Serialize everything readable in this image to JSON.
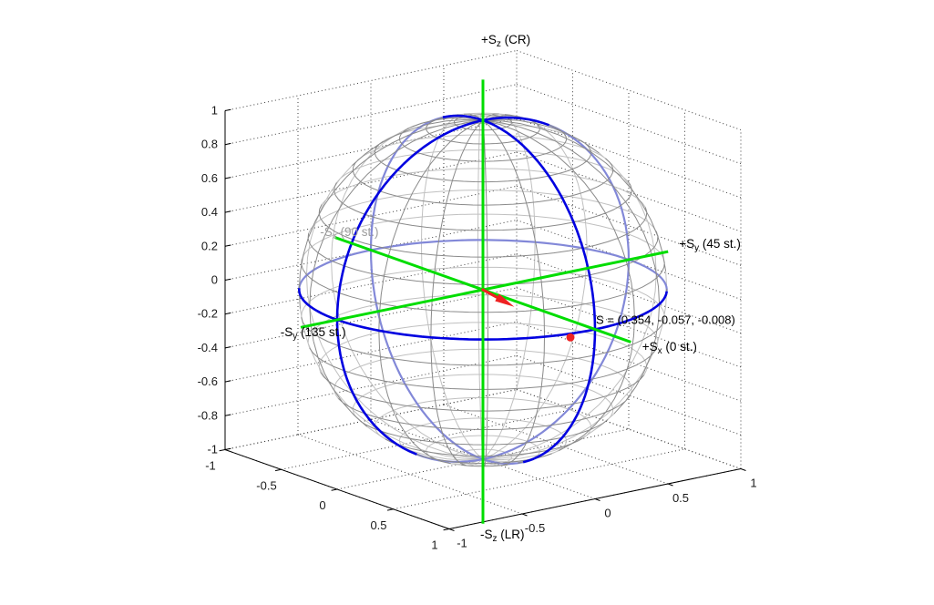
{
  "chart_data": {
    "type": "3d-sphere-wireframe",
    "description_visible": false,
    "axes": {
      "xlim": [
        -1,
        1
      ],
      "ylim": [
        -1,
        1
      ],
      "zlim": [
        -1,
        1
      ],
      "x_ticks": {
        "values": [
          -1,
          -0.5,
          0,
          0.5,
          1
        ],
        "labels": [
          "-1",
          "-0.5",
          "0",
          "0.5",
          "1"
        ]
      },
      "y_ticks": {
        "values": [
          -1,
          -0.5,
          0,
          0.5,
          1
        ],
        "labels": [
          "-1",
          "-0.5",
          "0",
          "0.5",
          "1"
        ]
      },
      "z_ticks": {
        "values": [
          1,
          0.8,
          0.6,
          0.4,
          0.2,
          0,
          -0.2,
          -0.4,
          -0.6,
          -0.8,
          -1
        ],
        "labels": [
          "1",
          "0.8",
          "0.6",
          "0.4",
          "0.2",
          "0",
          "-0.2",
          "-0.4",
          "-0.6",
          "-0.8",
          "-1"
        ]
      },
      "grid": "dotted"
    },
    "sphere": {
      "radius": 1,
      "meridian_step_deg": 18,
      "parallel_step_deg": 9,
      "curve_step_deg": 6
    },
    "great_circles": [
      {
        "plane": "xy"
      },
      {
        "plane": "xz"
      },
      {
        "plane": "yz"
      }
    ],
    "cartesian_axes_through_origin": true,
    "stokes_vector": {
      "label": "S",
      "S1": 0.354,
      "S2": -0.057,
      "S3": -0.008
    },
    "normalized_point_on_sphere": true,
    "annotation": {
      "text": "S = (0.354, -0.057, -0.008)"
    },
    "axis_labels": [
      {
        "id": "plus-sz",
        "axis": "z",
        "dir": 1,
        "prefix": "+S",
        "sub": "z",
        "suffix": " (CR)",
        "color": "#000000"
      },
      {
        "id": "minus-sz",
        "axis": "z",
        "dir": -1,
        "prefix": "-S",
        "sub": "z",
        "suffix": " (LR)",
        "color": "#000000"
      },
      {
        "id": "plus-sy",
        "axis": "y",
        "dir": 1,
        "prefix": "+S",
        "sub": "y",
        "suffix": " (45 st.)",
        "color": "#000000"
      },
      {
        "id": "minus-sy",
        "axis": "y",
        "dir": -1,
        "prefix": "-S",
        "sub": "y",
        "suffix": " (135 st.)",
        "color": "#000000"
      },
      {
        "id": "plus-sx",
        "axis": "x",
        "dir": 1,
        "prefix": "+S",
        "sub": "x",
        "suffix": " (0 st.)",
        "color": "#000000"
      },
      {
        "id": "minus-sx",
        "axis": "x",
        "dir": -1,
        "prefix": "-S",
        "sub": "x",
        "suffix": " (90 st.)",
        "color": "#9c9c9c"
      }
    ],
    "colors": {
      "background": "#ffffff",
      "mesh_front": "#8a8a8a",
      "mesh_back": "#c0c0c0",
      "circle_front": "#0000e0",
      "circle_back": "#8288d8",
      "green_axes": "#00dd00",
      "vector_red": "#ee2222",
      "grid_dotted": "#3c3c3c",
      "axis_line": "#000000",
      "tick_text": "#1a1a1a"
    }
  }
}
